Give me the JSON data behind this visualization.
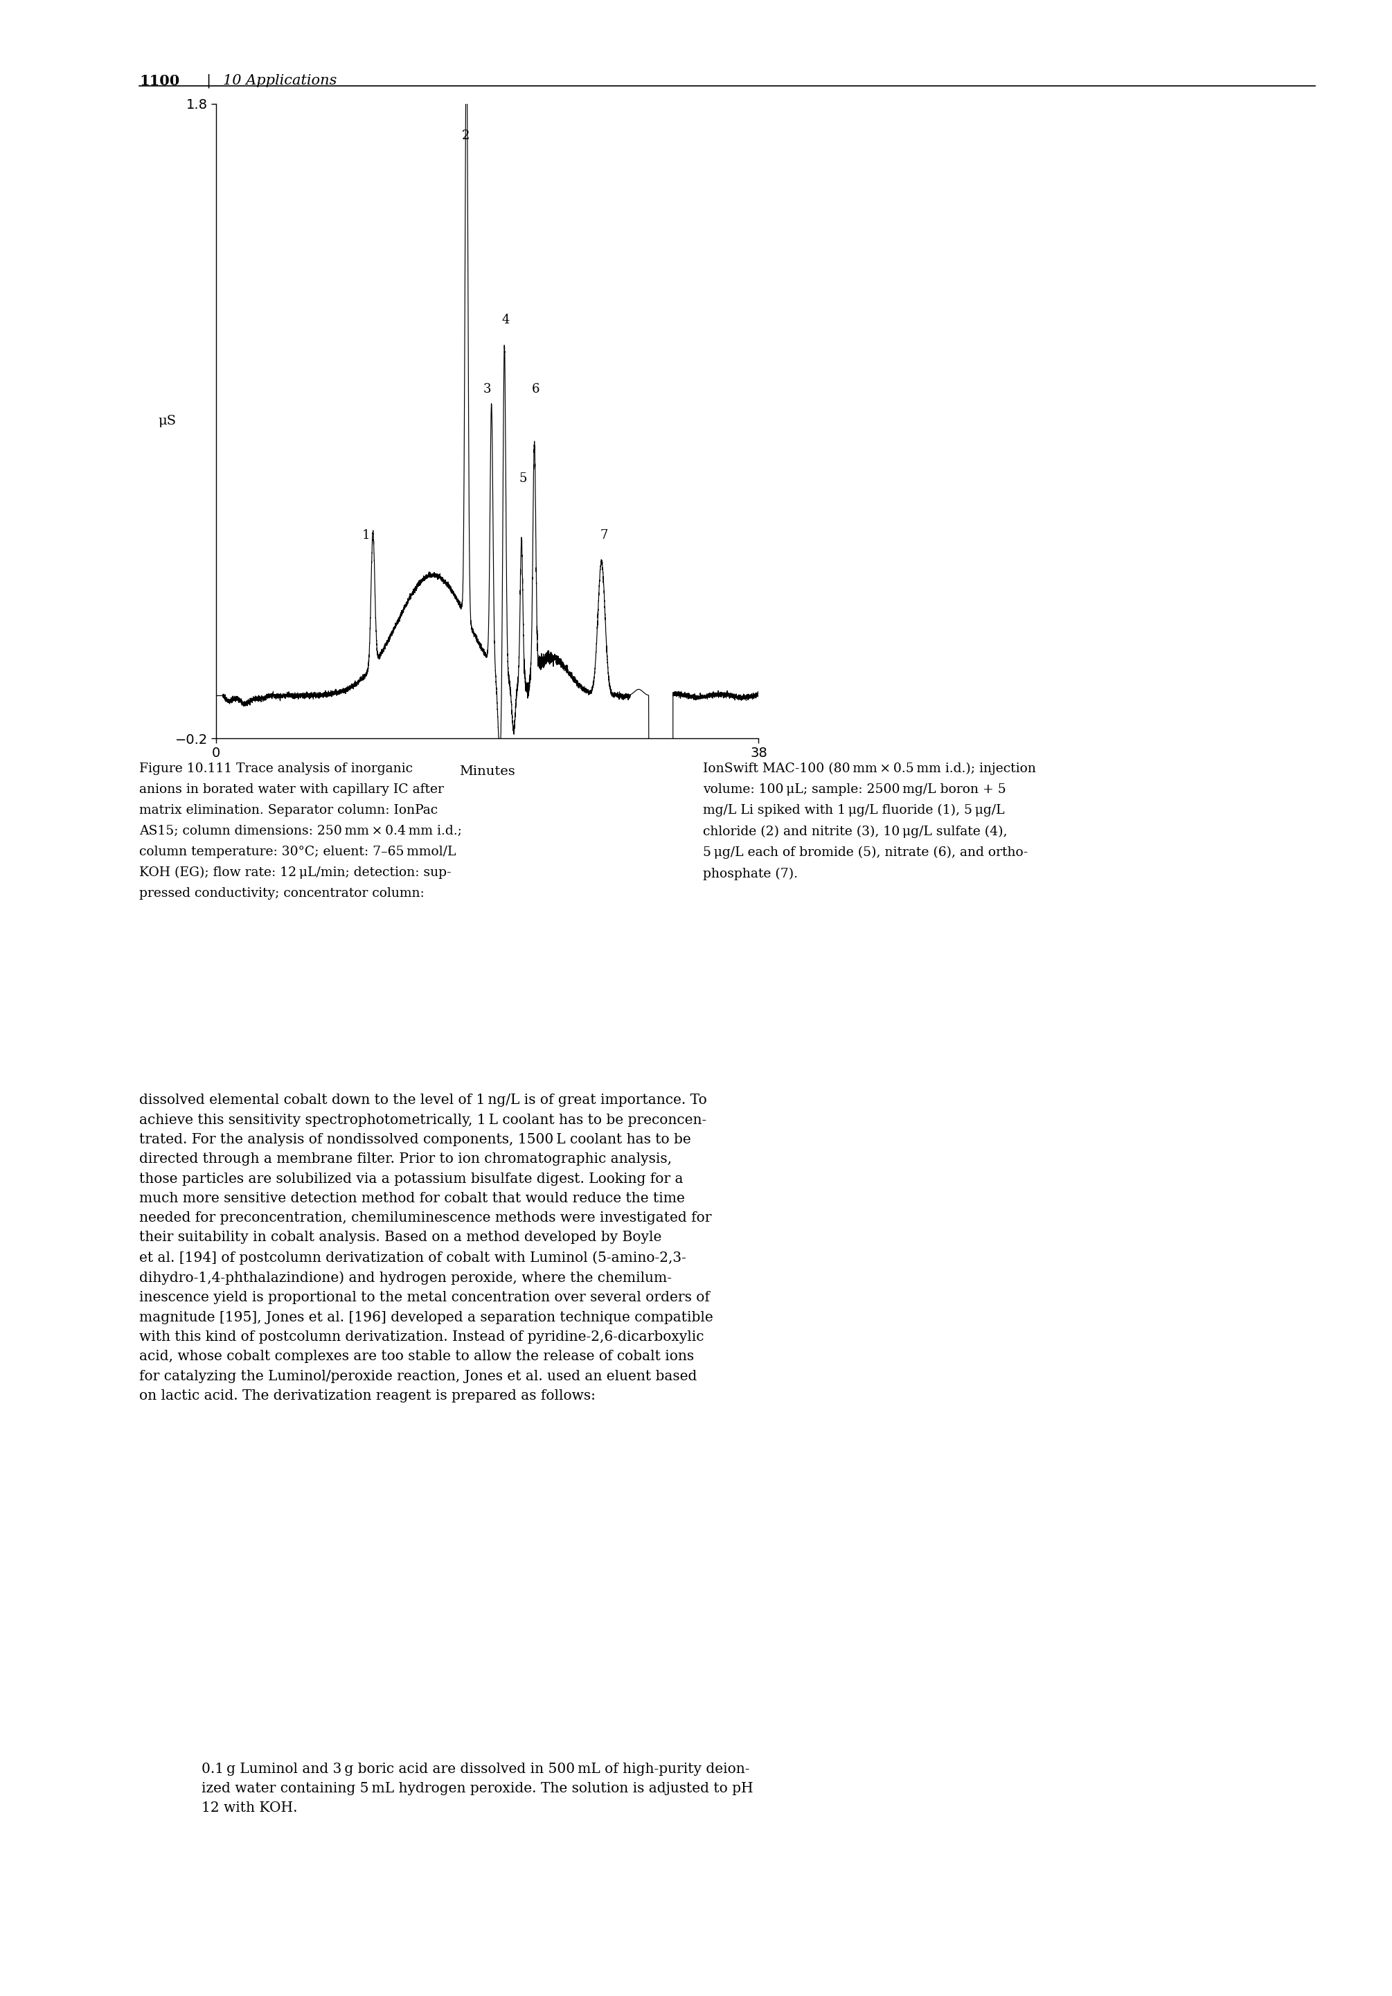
{
  "page_number": "1100",
  "chapter_header": "10 Applications",
  "ylabel": "μS",
  "xlabel": "Minutes",
  "ylim": [
    -0.2,
    1.8
  ],
  "xlim": [
    0,
    38
  ],
  "yticks": [
    -0.2,
    1.8
  ],
  "xticks": [
    0,
    38
  ],
  "peak_labels": [
    "1",
    "2",
    "3",
    "4",
    "5",
    "6",
    "7"
  ],
  "peak_label_positions_x": [
    10.5,
    17.5,
    19.0,
    20.3,
    21.5,
    22.4,
    27.2
  ],
  "peak_label_positions_y": [
    0.42,
    1.68,
    0.88,
    1.1,
    0.6,
    0.88,
    0.42
  ],
  "caption_left_bold": "Figure 10.111",
  "caption_left_normal": " Trace analysis of inorganic\nanions in borated water with capillary IC after\nmatrix elimination. Separator column: IonPac\nAS15; column dimensions: 250 mm × 0.4 mm i.d.;\ncolumn temperature: 30°C; eluent: 7–65 mmol/L\nKOH (EG); flow rate: 12 μL/min; detection: sup-\npressed conductivity; concentrator column:",
  "caption_right": "IonSwift MAC-100 (80 mm × 0.5 mm i.d.); injection\nvolume: 100 μL; sample: 2500 mg/L boron + 5\nmg/L Li spiked with 1 μg/L fluoride (1), 5 μg/L\nchloride (2) and nitrite (3), 10 μg/L sulfate (4),\n5 μg/L each of bromide (5), nitrate (6), and ortho-\nphosphate (7).",
  "body_text": "dissolved elemental cobalt down to the level of 1 ng/L is of great importance. To\nachieve this sensitivity spectrophotometrically, 1 L coolant has to be preconcen-\ntrated. For the analysis of nondissolved components, 1500 L coolant has to be\ndirected through a membrane filter. Prior to ion chromatographic analysis,\nthose particles are solubilized via a potassium bisulfate digest. Looking for a\nmuch more sensitive detection method for cobalt that would reduce the time\nneeded for preconcentration, chemiluminescence methods were investigated for\ntheir suitability in cobalt analysis. Based on a method developed by Boyle\net al. [194] of postcolumn derivatization of cobalt with Luminol (5-amino-2,3-\ndihydro-1,4-phthalazindione) and hydrogen peroxide, where the chemilum-\ninescence yield is proportional to the metal concentration over several orders of\nmagnitude [195], Jones et al. [196] developed a separation technique compatible\nwith this kind of postcolumn derivatization. Instead of pyridine-2,6-dicarboxylic\nacid, whose cobalt complexes are too stable to allow the release of cobalt ions\nfor catalyzing the Luminol/peroxide reaction, Jones et al. used an eluent based\non lactic acid. The derivatization reagent is prepared as follows:",
  "indent_text": "0.1 g Luminol and 3 g boric acid are dissolved in 500 mL of high-purity deion-\nized water containing 5 mL hydrogen peroxide. The solution is adjusted to pH\n12 with KOH.",
  "background_color": "#ffffff",
  "line_color": "#000000",
  "font_family": "DejaVu Serif"
}
